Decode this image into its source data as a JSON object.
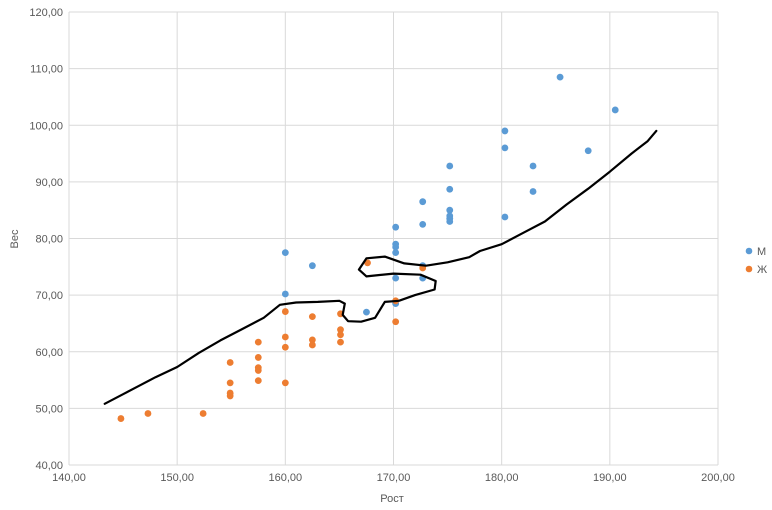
{
  "chart_data": {
    "type": "scatter",
    "title": "",
    "xlabel": "Рост",
    "ylabel": "Вес",
    "xlim": [
      140,
      200
    ],
    "ylim": [
      40,
      120
    ],
    "x_ticks": [
      140,
      150,
      160,
      170,
      180,
      190,
      200
    ],
    "y_ticks": [
      40,
      50,
      60,
      70,
      80,
      90,
      100,
      110,
      120
    ],
    "x_tick_labels": [
      "140,00",
      "150,00",
      "160,00",
      "170,00",
      "180,00",
      "190,00",
      "200,00"
    ],
    "y_tick_labels": [
      "40,00",
      "50,00",
      "60,00",
      "70,00",
      "80,00",
      "90,00",
      "100,00",
      "110,00",
      "120,00"
    ],
    "grid": true,
    "legend_position": "right",
    "series": [
      {
        "name": "М",
        "color": "#5b9bd5",
        "points": [
          [
            160.0,
            77.5
          ],
          [
            160.0,
            70.2
          ],
          [
            162.5,
            75.2
          ],
          [
            167.5,
            67.0
          ],
          [
            170.2,
            82.0
          ],
          [
            170.2,
            79.0
          ],
          [
            170.2,
            78.5
          ],
          [
            170.2,
            77.5
          ],
          [
            170.2,
            73.0
          ],
          [
            170.2,
            68.5
          ],
          [
            172.7,
            86.5
          ],
          [
            172.7,
            82.5
          ],
          [
            172.7,
            75.2
          ],
          [
            172.7,
            73.0
          ],
          [
            175.2,
            92.8
          ],
          [
            175.2,
            88.7
          ],
          [
            175.2,
            85.0
          ],
          [
            175.2,
            84.0
          ],
          [
            175.2,
            83.5
          ],
          [
            175.2,
            83.0
          ],
          [
            180.3,
            99.0
          ],
          [
            180.3,
            96.0
          ],
          [
            180.3,
            83.8
          ],
          [
            182.9,
            92.8
          ],
          [
            182.9,
            88.3
          ],
          [
            185.4,
            108.5
          ],
          [
            188.0,
            95.5
          ],
          [
            190.5,
            102.7
          ]
        ]
      },
      {
        "name": "Ж",
        "color": "#ed7d31",
        "points": [
          [
            144.8,
            48.2
          ],
          [
            147.3,
            49.1
          ],
          [
            152.4,
            49.1
          ],
          [
            154.9,
            58.1
          ],
          [
            154.9,
            54.5
          ],
          [
            154.9,
            52.7
          ],
          [
            154.9,
            52.2
          ],
          [
            157.5,
            61.7
          ],
          [
            157.5,
            59.0
          ],
          [
            157.5,
            57.2
          ],
          [
            157.5,
            56.7
          ],
          [
            157.5,
            54.9
          ],
          [
            160.0,
            67.1
          ],
          [
            160.0,
            62.6
          ],
          [
            160.0,
            60.8
          ],
          [
            160.0,
            54.5
          ],
          [
            162.5,
            66.2
          ],
          [
            162.5,
            62.1
          ],
          [
            162.5,
            61.2
          ],
          [
            165.1,
            66.7
          ],
          [
            165.1,
            63.9
          ],
          [
            165.1,
            63.0
          ],
          [
            165.1,
            61.7
          ],
          [
            167.6,
            75.7
          ],
          [
            170.2,
            69.0
          ],
          [
            170.2,
            65.3
          ],
          [
            172.7,
            74.8
          ]
        ]
      }
    ],
    "annotation_curve": {
      "color": "#000000",
      "points": [
        [
          143.3,
          50.8
        ],
        [
          145.0,
          52.5
        ],
        [
          146.5,
          54.0
        ],
        [
          148.0,
          55.5
        ],
        [
          150.0,
          57.3
        ],
        [
          152.0,
          59.8
        ],
        [
          154.0,
          62.0
        ],
        [
          156.0,
          64.0
        ],
        [
          158.0,
          66.0
        ],
        [
          159.5,
          68.3
        ],
        [
          161.0,
          68.7
        ],
        [
          163.0,
          68.8
        ],
        [
          165.0,
          69.0
        ],
        [
          165.5,
          68.5
        ],
        [
          165.3,
          66.5
        ],
        [
          165.8,
          65.4
        ],
        [
          167.0,
          65.3
        ],
        [
          168.3,
          66.0
        ],
        [
          169.2,
          68.8
        ],
        [
          170.5,
          69.0
        ],
        [
          172.0,
          70.0
        ],
        [
          173.8,
          71.0
        ],
        [
          173.9,
          72.5
        ],
        [
          172.5,
          73.6
        ],
        [
          170.0,
          73.8
        ],
        [
          167.5,
          73.3
        ],
        [
          166.8,
          74.5
        ],
        [
          167.5,
          76.5
        ],
        [
          169.2,
          76.8
        ],
        [
          171.0,
          75.6
        ],
        [
          173.0,
          75.2
        ],
        [
          175.0,
          75.8
        ],
        [
          177.0,
          76.7
        ],
        [
          178.0,
          77.8
        ],
        [
          180.0,
          79.0
        ],
        [
          182.0,
          81.0
        ],
        [
          184.0,
          83.0
        ],
        [
          186.0,
          86.0
        ],
        [
          188.0,
          88.8
        ],
        [
          190.0,
          91.8
        ],
        [
          192.0,
          95.0
        ],
        [
          193.5,
          97.2
        ],
        [
          194.3,
          99.0
        ]
      ]
    }
  }
}
